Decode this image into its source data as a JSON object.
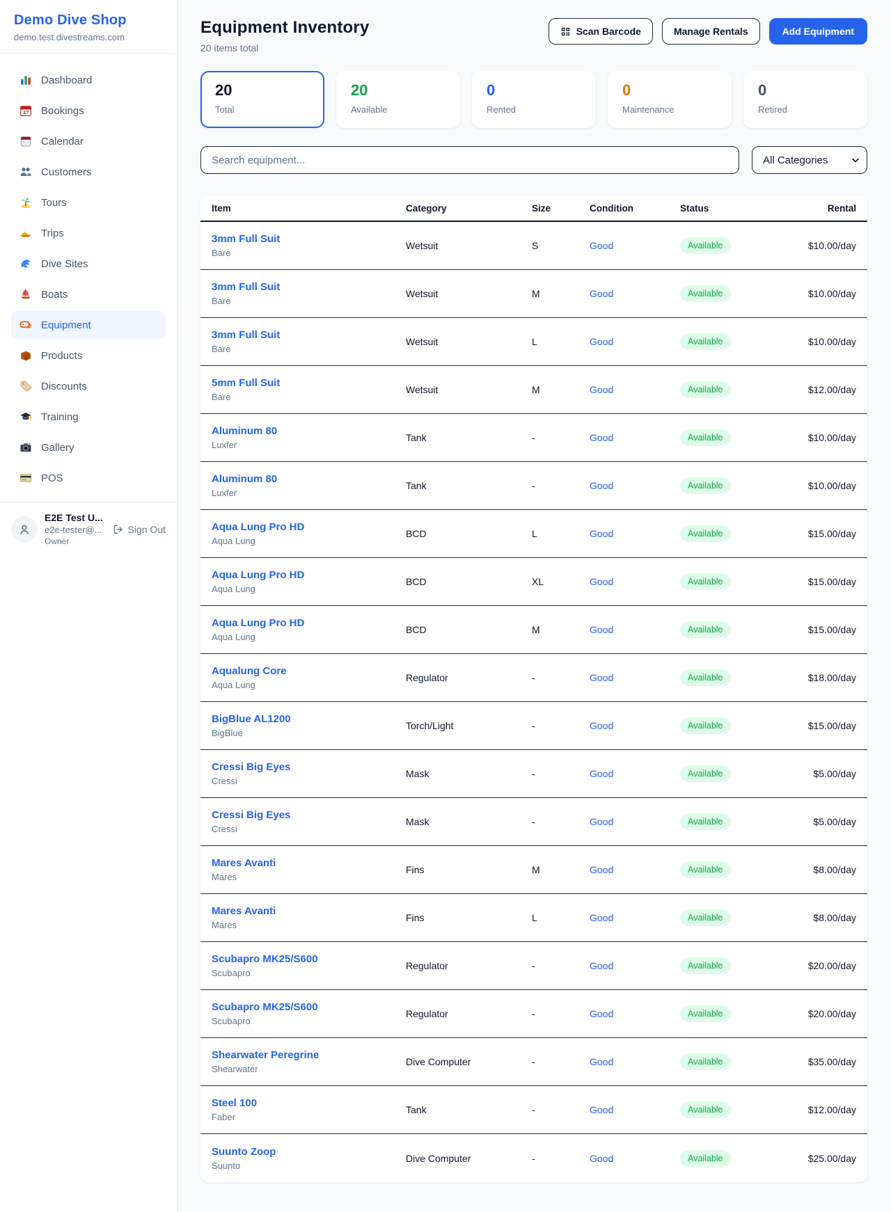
{
  "sidebar": {
    "title": "Demo Dive Shop",
    "subtitle": "demo.test.divestreams.com",
    "items": [
      {
        "icon": "bar-chart-icon",
        "label": "Dashboard",
        "active": false
      },
      {
        "icon": "bookings-calendar-icon",
        "label": "Bookings",
        "active": false
      },
      {
        "icon": "calendar-icon",
        "label": "Calendar",
        "active": false
      },
      {
        "icon": "customers-icon",
        "label": "Customers",
        "active": false
      },
      {
        "icon": "palm-island-icon",
        "label": "Tours",
        "active": false
      },
      {
        "icon": "speedboat-icon",
        "label": "Trips",
        "active": false
      },
      {
        "icon": "wave-icon",
        "label": "Dive Sites",
        "active": false
      },
      {
        "icon": "sailboat-icon",
        "label": "Boats",
        "active": false
      },
      {
        "icon": "dive-mask-icon",
        "label": "Equipment",
        "active": true
      },
      {
        "icon": "package-icon",
        "label": "Products",
        "active": false
      },
      {
        "icon": "tag-icon",
        "label": "Discounts",
        "active": false
      },
      {
        "icon": "graduation-cap-icon",
        "label": "Training",
        "active": false
      },
      {
        "icon": "camera-icon",
        "label": "Gallery",
        "active": false
      },
      {
        "icon": "credit-card-icon",
        "label": "POS",
        "active": false
      }
    ],
    "user": {
      "name": "E2E Test U...",
      "email": "e2e-tester@...",
      "role": "Owner",
      "sign_out_label": "Sign Out"
    }
  },
  "header": {
    "title": "Equipment Inventory",
    "subtitle": "20 items total",
    "scan_barcode_label": "Scan Barcode",
    "manage_rentals_label": "Manage Rentals",
    "add_equipment_label": "Add Equipment"
  },
  "stats": [
    {
      "value": "20",
      "label": "Total",
      "color": "#0f172a",
      "active": true
    },
    {
      "value": "20",
      "label": "Available",
      "color": "#16a34a",
      "active": false
    },
    {
      "value": "0",
      "label": "Rented",
      "color": "#2563eb",
      "active": false
    },
    {
      "value": "0",
      "label": "Maintenance",
      "color": "#d97706",
      "active": false
    },
    {
      "value": "0",
      "label": "Retired",
      "color": "#475569",
      "active": false
    }
  ],
  "filters": {
    "search_placeholder": "Search equipment...",
    "category_selected": "All Categories"
  },
  "table": {
    "columns": [
      "Item",
      "Category",
      "Size",
      "Condition",
      "Status",
      "Rental"
    ],
    "rows": [
      {
        "name": "3mm Full Suit",
        "brand": "Bare",
        "category": "Wetsuit",
        "size": "S",
        "condition": "Good",
        "status": "Available",
        "rental": "$10.00/day"
      },
      {
        "name": "3mm Full Suit",
        "brand": "Bare",
        "category": "Wetsuit",
        "size": "M",
        "condition": "Good",
        "status": "Available",
        "rental": "$10.00/day"
      },
      {
        "name": "3mm Full Suit",
        "brand": "Bare",
        "category": "Wetsuit",
        "size": "L",
        "condition": "Good",
        "status": "Available",
        "rental": "$10.00/day"
      },
      {
        "name": "5mm Full Suit",
        "brand": "Bare",
        "category": "Wetsuit",
        "size": "M",
        "condition": "Good",
        "status": "Available",
        "rental": "$12.00/day"
      },
      {
        "name": "Aluminum 80",
        "brand": "Luxfer",
        "category": "Tank",
        "size": "-",
        "condition": "Good",
        "status": "Available",
        "rental": "$10.00/day"
      },
      {
        "name": "Aluminum 80",
        "brand": "Luxfer",
        "category": "Tank",
        "size": "-",
        "condition": "Good",
        "status": "Available",
        "rental": "$10.00/day"
      },
      {
        "name": "Aqua Lung Pro HD",
        "brand": "Aqua Lung",
        "category": "BCD",
        "size": "L",
        "condition": "Good",
        "status": "Available",
        "rental": "$15.00/day"
      },
      {
        "name": "Aqua Lung Pro HD",
        "brand": "Aqua Lung",
        "category": "BCD",
        "size": "XL",
        "condition": "Good",
        "status": "Available",
        "rental": "$15.00/day"
      },
      {
        "name": "Aqua Lung Pro HD",
        "brand": "Aqua Lung",
        "category": "BCD",
        "size": "M",
        "condition": "Good",
        "status": "Available",
        "rental": "$15.00/day"
      },
      {
        "name": "Aqualung Core",
        "brand": "Aqua Lung",
        "category": "Regulator",
        "size": "-",
        "condition": "Good",
        "status": "Available",
        "rental": "$18.00/day"
      },
      {
        "name": "BigBlue AL1200",
        "brand": "BigBlue",
        "category": "Torch/Light",
        "size": "-",
        "condition": "Good",
        "status": "Available",
        "rental": "$15.00/day"
      },
      {
        "name": "Cressi Big Eyes",
        "brand": "Cressi",
        "category": "Mask",
        "size": "-",
        "condition": "Good",
        "status": "Available",
        "rental": "$5.00/day"
      },
      {
        "name": "Cressi Big Eyes",
        "brand": "Cressi",
        "category": "Mask",
        "size": "-",
        "condition": "Good",
        "status": "Available",
        "rental": "$5.00/day"
      },
      {
        "name": "Mares Avanti",
        "brand": "Mares",
        "category": "Fins",
        "size": "M",
        "condition": "Good",
        "status": "Available",
        "rental": "$8.00/day"
      },
      {
        "name": "Mares Avanti",
        "brand": "Mares",
        "category": "Fins",
        "size": "L",
        "condition": "Good",
        "status": "Available",
        "rental": "$8.00/day"
      },
      {
        "name": "Scubapro MK25/S600",
        "brand": "Scubapro",
        "category": "Regulator",
        "size": "-",
        "condition": "Good",
        "status": "Available",
        "rental": "$20.00/day"
      },
      {
        "name": "Scubapro MK25/S600",
        "brand": "Scubapro",
        "category": "Regulator",
        "size": "-",
        "condition": "Good",
        "status": "Available",
        "rental": "$20.00/day"
      },
      {
        "name": "Shearwater Peregrine",
        "brand": "Shearwater",
        "category": "Dive Computer",
        "size": "-",
        "condition": "Good",
        "status": "Available",
        "rental": "$35.00/day"
      },
      {
        "name": "Steel 100",
        "brand": "Faber",
        "category": "Tank",
        "size": "-",
        "condition": "Good",
        "status": "Available",
        "rental": "$12.00/day"
      },
      {
        "name": "Suunto Zoop",
        "brand": "Suunto",
        "category": "Dive Computer",
        "size": "-",
        "condition": "Good",
        "status": "Available",
        "rental": "$25.00/day"
      }
    ]
  },
  "colors": {
    "accent": "#2563eb",
    "available_pill_bg": "#dcfce7",
    "available_pill_text": "#16a34a",
    "maintenance": "#d97706",
    "page_background": "#f8fafc"
  }
}
